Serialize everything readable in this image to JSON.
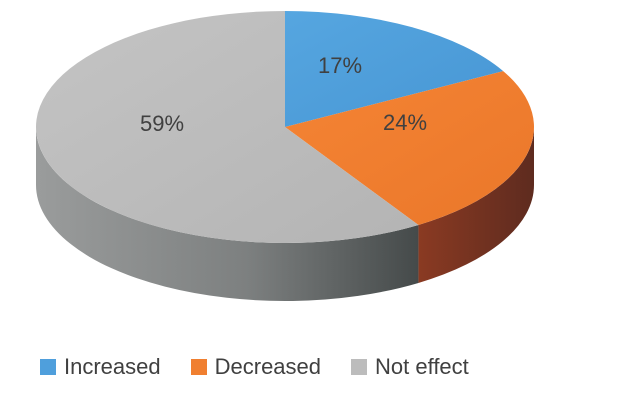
{
  "chart_data": {
    "type": "pie",
    "style": "3d",
    "categories": [
      "Increased",
      "Decreased",
      "Not effect"
    ],
    "values": [
      17,
      24,
      59
    ],
    "labels": [
      "17%",
      "24%",
      "59%"
    ],
    "colors": [
      "#4f9fdc",
      "#f07f30",
      "#bcbcbc"
    ],
    "side_colors": [
      "#2f6fa0",
      "#8a3a22",
      "#6e7070"
    ],
    "legend_position": "bottom"
  },
  "legend": {
    "items": [
      {
        "label": "Increased",
        "color": "#4f9fdc"
      },
      {
        "label": "Decreased",
        "color": "#f07f30"
      },
      {
        "label": "Not effect",
        "color": "#bcbcbc"
      }
    ]
  }
}
